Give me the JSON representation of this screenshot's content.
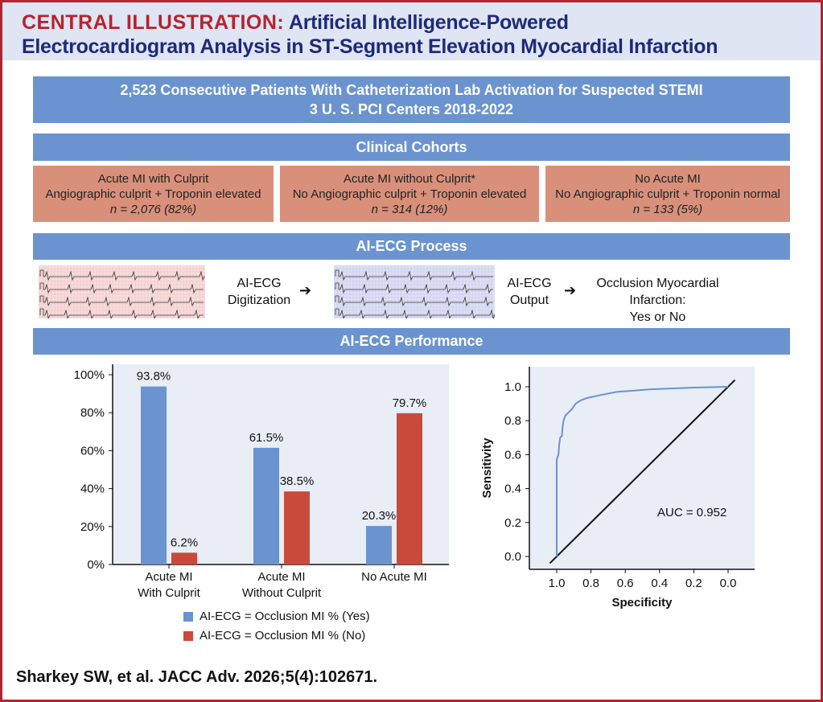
{
  "header": {
    "title_prefix": "CENTRAL ILLUSTRATION:",
    "title_line1": "Artificial Intelligence-Powered",
    "title_line2": "Electrocardiogram Analysis in ST-Segment Elevation Myocardial Infarction"
  },
  "population": {
    "line1": "2,523 Consecutive Patients With Catheterization Lab Activation for Suspected STEMI",
    "line2": "3 U. S. PCI Centers 2018-2022"
  },
  "cohorts_title": "Clinical Cohorts",
  "cohorts": [
    {
      "name": "Acute MI with Culprit",
      "definition": "Angiographic culprit + Troponin elevated",
      "n": "n = 2,076 (82%)"
    },
    {
      "name": "Acute MI without Culprit*",
      "definition": "No Angiographic culprit + Troponin elevated",
      "n": "n = 314 (12%)"
    },
    {
      "name": "No Acute MI",
      "definition": "No Angiographic culprit + Troponin normal",
      "n": "n = 133 (5%)"
    }
  ],
  "process": {
    "title": "AI-ECG Process",
    "step1_line1": "AI-ECG",
    "step1_line2": "Digitization",
    "step2_line1": "AI-ECG",
    "step2_line2": "Output",
    "result_line1": "Occlusion Myocardial Infarction:",
    "result_line2": "Yes or No",
    "arrow": "➔"
  },
  "performance_title": "AI-ECG Performance",
  "colors": {
    "blue": "#6a93d0",
    "red": "#c94a3a",
    "salmon": "#d9907a",
    "brand_red": "#b5232f",
    "navy": "#1e2a78"
  },
  "chart_data": [
    {
      "type": "bar",
      "categories": [
        "Acute MI\nWith Culprit",
        "Acute MI\nWithout Culprit",
        "No Acute MI"
      ],
      "category_lines": [
        [
          "Acute MI",
          "With Culprit"
        ],
        [
          "Acute MI",
          "Without Culprit"
        ],
        [
          "No Acute MI"
        ]
      ],
      "series": [
        {
          "name": "AI-ECG = Occlusion MI % (Yes)",
          "values": [
            93.8,
            61.5,
            20.3
          ],
          "labels": [
            "93.8%",
            "61.5%",
            "20.3%"
          ],
          "color": "#6a93d0"
        },
        {
          "name": "AI-ECG = Occlusion MI % (No)",
          "values": [
            6.2,
            38.5,
            79.7
          ],
          "labels": [
            "6.2%",
            "38.5%",
            "79.7%"
          ],
          "color": "#c94a3a"
        }
      ],
      "ylim": [
        0,
        100
      ],
      "yticks": [
        "0%",
        "20%",
        "40%",
        "60%",
        "80%",
        "100%"
      ],
      "legend": "bottom",
      "grid": false
    },
    {
      "type": "line",
      "xlabel": "Specificity",
      "ylabel": "Sensitivity",
      "xlim": [
        1.0,
        0.0
      ],
      "ylim": [
        0.0,
        1.0
      ],
      "xticks": [
        "1.0",
        "0.8",
        "0.6",
        "0.4",
        "0.2",
        "0.0"
      ],
      "yticks": [
        "0.0",
        "0.2",
        "0.4",
        "0.6",
        "0.8",
        "1.0"
      ],
      "annotation": "AUC = 0.952",
      "roc": {
        "specificity": [
          1.0,
          1.0,
          0.99,
          0.985,
          0.98,
          0.97,
          0.965,
          0.96,
          0.95,
          0.93,
          0.91,
          0.89,
          0.86,
          0.82,
          0.75,
          0.65,
          0.45,
          0.2,
          0.0
        ],
        "sensitivity": [
          0.0,
          0.57,
          0.6,
          0.66,
          0.7,
          0.71,
          0.77,
          0.8,
          0.83,
          0.85,
          0.87,
          0.9,
          0.92,
          0.935,
          0.95,
          0.97,
          0.985,
          0.995,
          1.0
        ],
        "color": "#6a93d0"
      },
      "reference_line": "diagonal",
      "grid": false
    }
  ],
  "citation": "Sharkey SW, et al. JACC Adv. 2026;5(4):102671."
}
